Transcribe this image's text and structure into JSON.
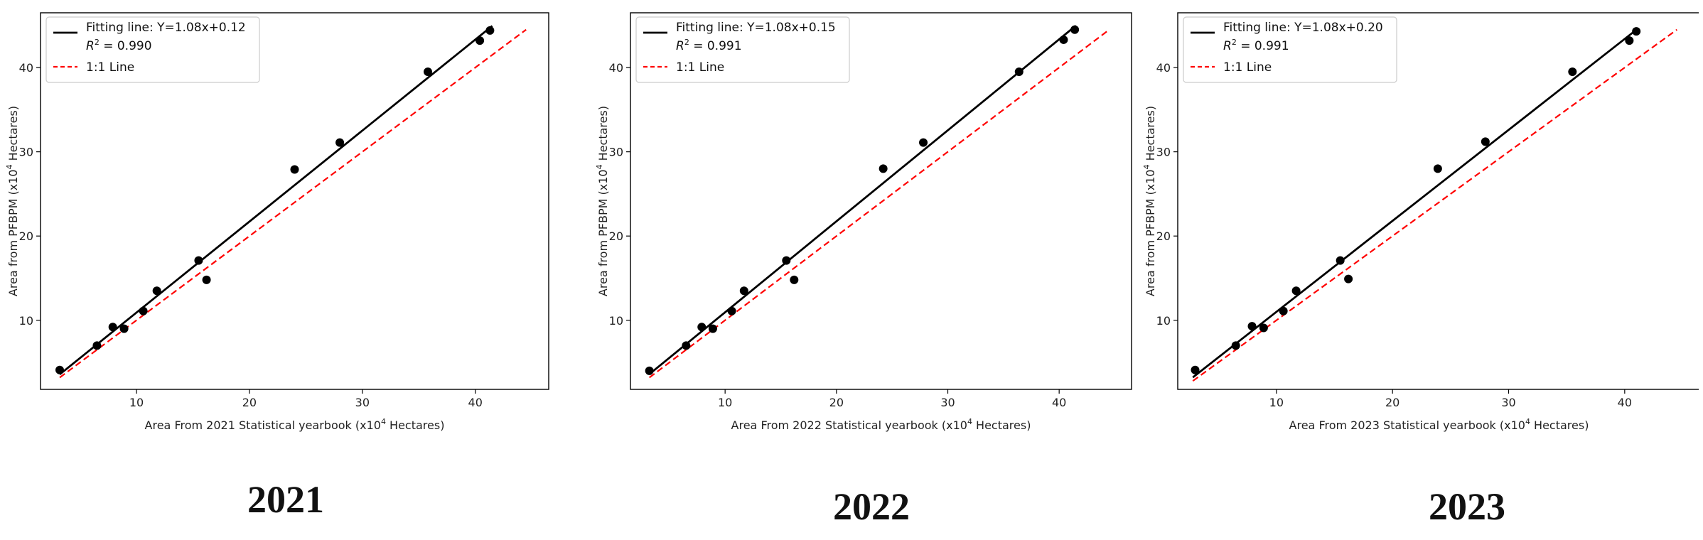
{
  "chart_data": [
    {
      "type": "scatter",
      "caption": "2021",
      "xlabel_pre": "Area From 2021 Statistical yearbook (x10",
      "xlabel_sup": "4",
      "xlabel_post": " Hectares)",
      "ylabel_pre": "Area from PFBPM (x10",
      "ylabel_sup": "4",
      "ylabel_post": " Hectares)",
      "xlim": [
        1.5,
        46.5
      ],
      "ylim": [
        1.8,
        46.5
      ],
      "xticks": [
        10,
        20,
        30,
        40
      ],
      "yticks": [
        10,
        20,
        30,
        40
      ],
      "grid": false,
      "legend_position": "upper-left",
      "legend": {
        "fit_label": "Fitting line: Y=1.08x+0.12",
        "r2_symbol": "R",
        "r2_sup": "2",
        "r2_value": " = 0.990",
        "oneone_label": "1:1 Line"
      },
      "fit": {
        "slope": 1.08,
        "intercept": 0.12,
        "x_range": [
          3.2,
          41.5
        ],
        "color": "#000000"
      },
      "oneone": {
        "range": [
          3.2,
          44.5
        ],
        "color": "#ff0000"
      },
      "points": {
        "x": [
          3.2,
          6.5,
          7.9,
          8.9,
          10.6,
          11.8,
          15.5,
          16.2,
          24.0,
          28.0,
          35.8,
          40.4,
          41.3
        ],
        "y": [
          4.1,
          7.0,
          9.2,
          9.0,
          11.1,
          13.5,
          17.1,
          14.8,
          27.9,
          31.1,
          39.5,
          43.2,
          44.4
        ],
        "color": "#000000"
      }
    },
    {
      "type": "scatter",
      "caption": "2022",
      "xlabel_pre": "Area From 2022 Statistical yearbook (x10",
      "xlabel_sup": "4",
      "xlabel_post": " Hectares)",
      "ylabel_pre": "Area from PFBPM (x10",
      "ylabel_sup": "4",
      "ylabel_post": " Hectares)",
      "xlim": [
        1.5,
        46.5
      ],
      "ylim": [
        1.8,
        46.5
      ],
      "xticks": [
        10,
        20,
        30,
        40
      ],
      "yticks": [
        10,
        20,
        30,
        40
      ],
      "grid": false,
      "legend_position": "upper-left",
      "legend": {
        "fit_label": "Fitting line: Y=1.08x+0.15",
        "r2_symbol": "R",
        "r2_sup": "2",
        "r2_value": " = 0.991",
        "oneone_label": "1:1 Line"
      },
      "fit": {
        "slope": 1.08,
        "intercept": 0.15,
        "x_range": [
          3.2,
          41.5
        ],
        "color": "#000000"
      },
      "oneone": {
        "range": [
          3.2,
          44.5
        ],
        "color": "#ff0000"
      },
      "points": {
        "x": [
          3.2,
          6.5,
          7.9,
          8.9,
          10.6,
          11.7,
          15.5,
          16.2,
          24.2,
          27.8,
          36.4,
          40.4,
          41.4
        ],
        "y": [
          4.0,
          7.0,
          9.2,
          9.0,
          11.1,
          13.5,
          17.1,
          14.8,
          28.0,
          31.1,
          39.5,
          43.3,
          44.5
        ],
        "color": "#000000"
      }
    },
    {
      "type": "scatter",
      "caption": "2023",
      "xlabel_pre": "Area From 2023 Statistical yearbook (x10",
      "xlabel_sup": "4",
      "xlabel_post": " Hectares)",
      "ylabel_pre": "Area from PFBPM (x10",
      "ylabel_sup": "4",
      "ylabel_post": " Hectares)",
      "xlim": [
        1.5,
        46.5
      ],
      "ylim": [
        1.8,
        46.5
      ],
      "xticks": [
        10,
        20,
        30,
        40
      ],
      "yticks": [
        10,
        20,
        30,
        40
      ],
      "grid": false,
      "legend_position": "upper-left",
      "legend": {
        "fit_label": "Fitting line: Y=1.08x+0.20",
        "r2_symbol": "R",
        "r2_sup": "2",
        "r2_value": " = 0.991",
        "oneone_label": "1:1 Line"
      },
      "fit": {
        "slope": 1.08,
        "intercept": 0.2,
        "x_range": [
          2.8,
          41.1
        ],
        "color": "#000000"
      },
      "oneone": {
        "range": [
          2.8,
          44.5
        ],
        "color": "#ff0000"
      },
      "points": {
        "x": [
          3.0,
          6.5,
          7.9,
          8.9,
          10.6,
          11.7,
          15.5,
          16.2,
          23.9,
          28.0,
          35.5,
          40.4,
          41.0
        ],
        "y": [
          4.1,
          7.0,
          9.3,
          9.1,
          11.1,
          13.5,
          17.1,
          14.9,
          28.0,
          31.2,
          39.5,
          43.2,
          44.3
        ],
        "color": "#000000"
      }
    }
  ]
}
